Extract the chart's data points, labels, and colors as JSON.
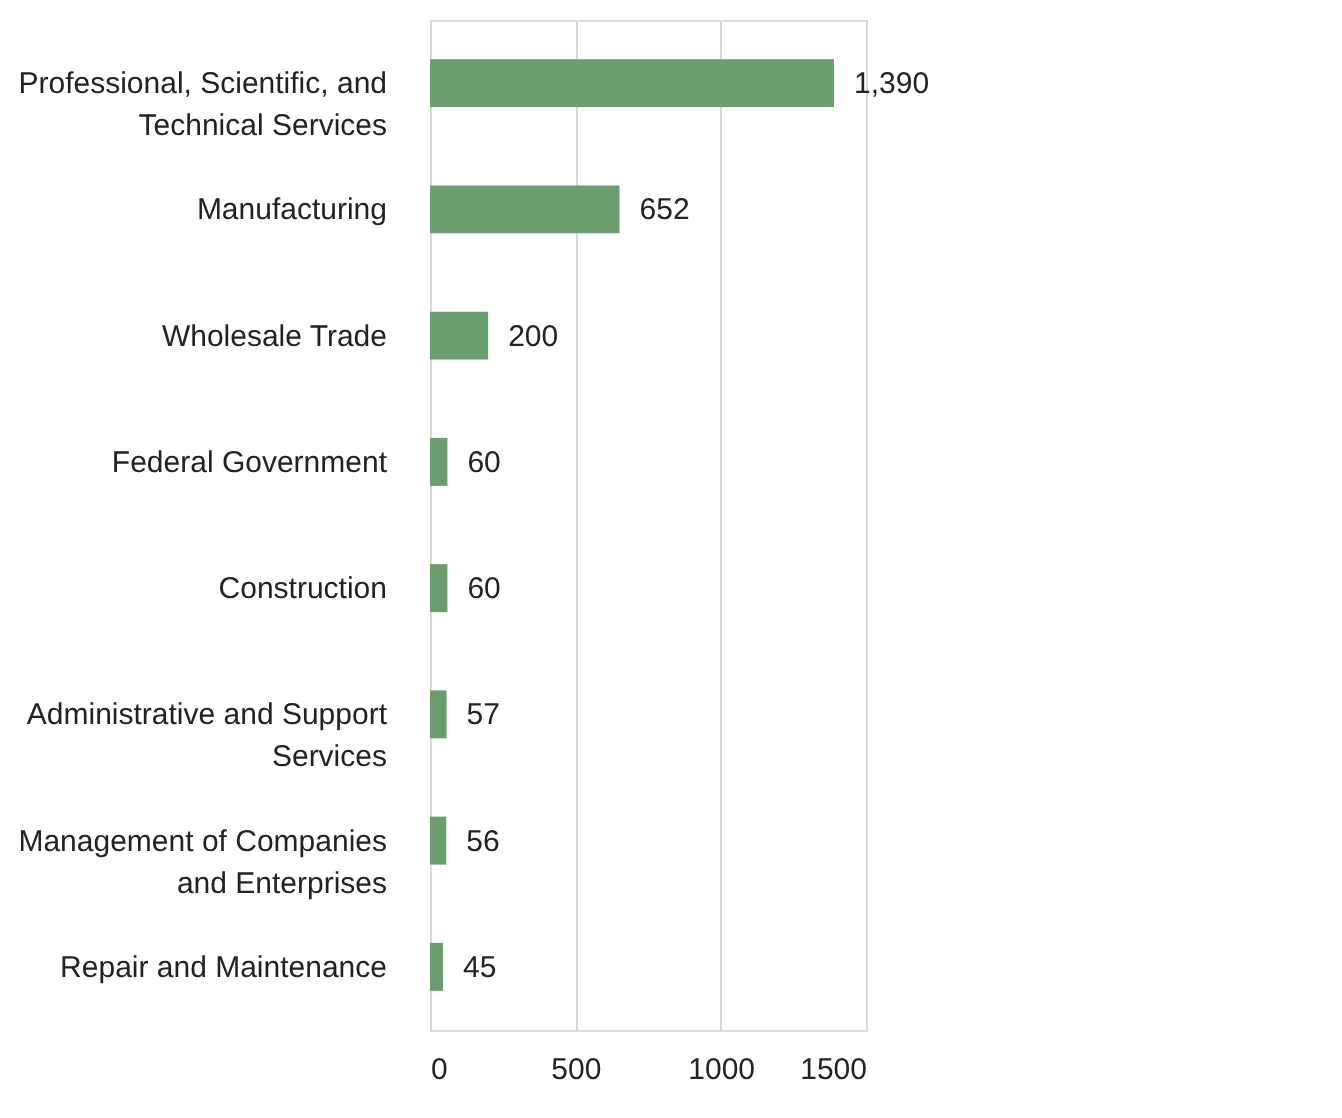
{
  "chart_data": {
    "type": "bar",
    "orientation": "horizontal",
    "categories": [
      "Professional, Scientific, and\nTechnical Services",
      "Manufacturing",
      "Wholesale Trade",
      "Federal Government",
      "Construction",
      "Administrative and Support\nServices",
      "Management of Companies\nand Enterprises",
      "Repair and Maintenance"
    ],
    "values": [
      1390,
      652,
      200,
      60,
      60,
      57,
      56,
      45
    ],
    "value_labels": [
      "1,390",
      "652",
      "200",
      "60",
      "60",
      "57",
      "56",
      "45"
    ],
    "color": "#6b9e6f",
    "xlim": [
      0,
      1500
    ],
    "xticks": [
      0,
      500,
      1000,
      1500
    ],
    "grid": "x"
  }
}
